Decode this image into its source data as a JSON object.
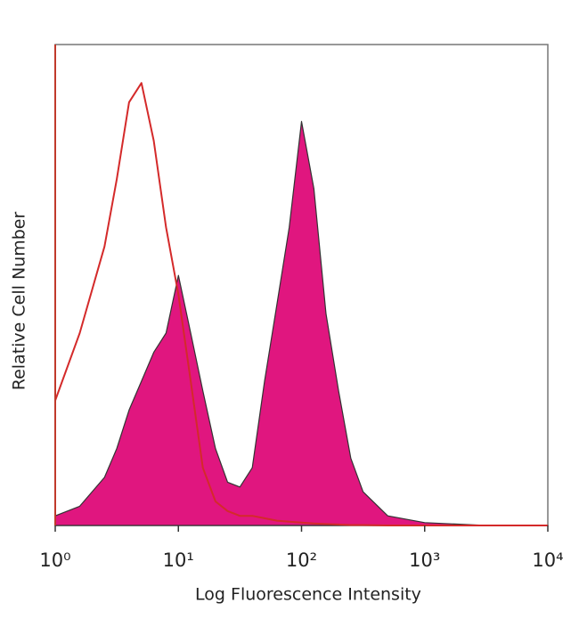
{
  "chart_data": {
    "type": "histogram-line",
    "xlabel": "Log Fluorescence Intensity",
    "ylabel": "Relative Cell Number",
    "xscale": "log",
    "xlim": [
      1,
      10000
    ],
    "ylim": [
      0,
      100
    ],
    "xticks": [
      {
        "value": 1,
        "label": "10⁰"
      },
      {
        "value": 10,
        "label": "10¹"
      },
      {
        "value": 100,
        "label": "10²"
      },
      {
        "value": 1000,
        "label": "10³"
      },
      {
        "value": 10000,
        "label": "10⁴"
      }
    ],
    "x": [
      1,
      1.58,
      2.51,
      3.16,
      3.98,
      5.01,
      6.31,
      7.94,
      10,
      12.6,
      15.8,
      20,
      25.1,
      31.6,
      39.8,
      50.1,
      63.1,
      79.4,
      100,
      126,
      158,
      200,
      251,
      316,
      501,
      1000,
      3162,
      10000
    ],
    "series": [
      {
        "color": "#e0167f",
        "filled": true,
        "values": [
          2,
          4,
          10,
          16,
          24,
          30,
          36,
          40,
          52,
          40,
          28,
          16,
          9,
          8,
          12,
          30,
          46,
          62,
          84,
          70,
          44,
          28,
          14,
          7,
          2,
          0.6,
          0,
          0
        ]
      },
      {
        "color": "#d42a2a",
        "filled": false,
        "values": [
          26,
          40,
          58,
          72,
          88,
          92,
          80,
          62,
          48,
          30,
          12,
          5,
          3,
          2,
          2,
          1.5,
          1,
          0.8,
          0.6,
          0.4,
          0.3,
          0.2,
          0.1,
          0.1,
          0,
          0,
          0,
          0
        ]
      }
    ]
  }
}
